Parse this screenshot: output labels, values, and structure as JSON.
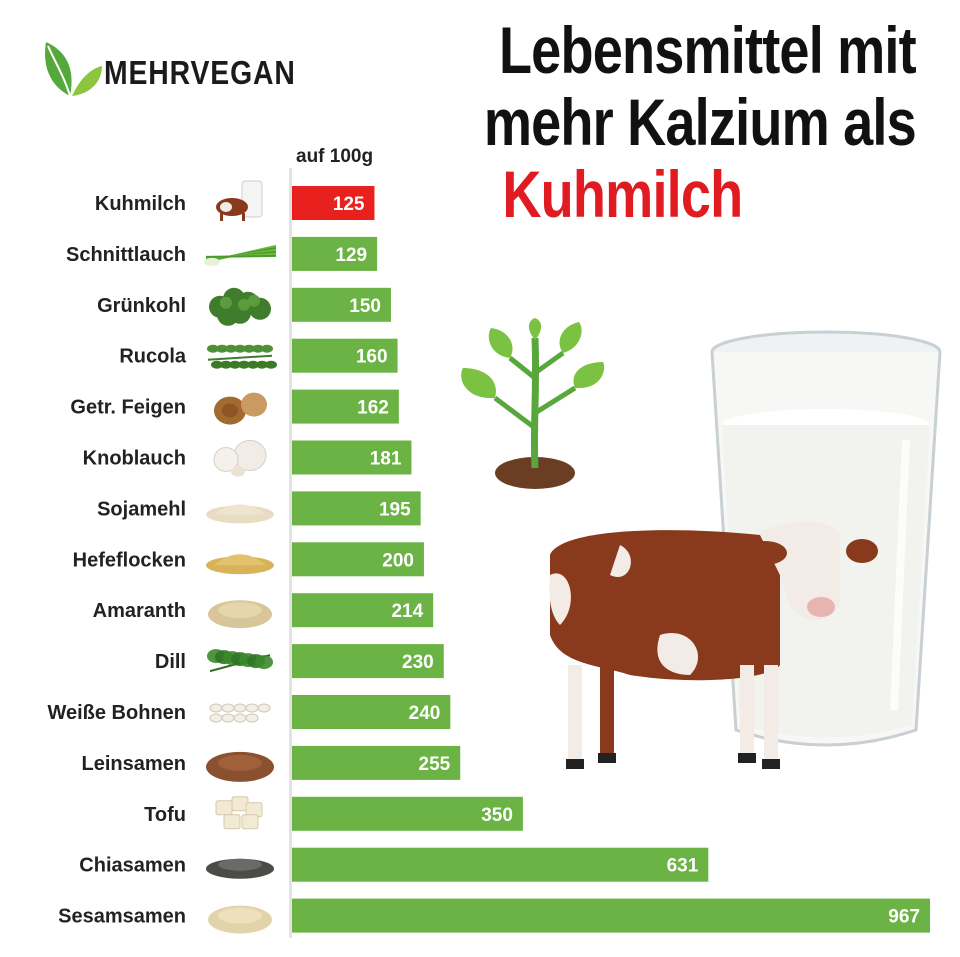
{
  "brand": {
    "name": "MEHRVEGAN",
    "icon": "leaf-icon"
  },
  "title": {
    "line1": "Lebensmittel mit",
    "line2": "mehr Kalzium als",
    "highlight": "Kuhmilch"
  },
  "colors": {
    "bar_green": "#6ab344",
    "bar_red": "#e8201e",
    "title_red": "#e11b22",
    "leaf_green": "#55a83c"
  },
  "chart_data": {
    "type": "bar",
    "orientation": "horizontal",
    "unit_label": "auf 100g",
    "categories": [
      "Kuhmilch",
      "Schnittlauch",
      "Grünkohl",
      "Rucola",
      "Getr. Feigen",
      "Knoblauch",
      "Sojamehl",
      "Hefeflocken",
      "Amaranth",
      "Dill",
      "Weiße Bohnen",
      "Leinsamen",
      "Tofu",
      "Chiasamen",
      "Sesamsamen"
    ],
    "values": [
      125,
      129,
      150,
      160,
      162,
      181,
      195,
      200,
      214,
      230,
      240,
      255,
      350,
      631,
      967
    ],
    "highlight_category": "Kuhmilch",
    "data_labels": true,
    "grid": false,
    "xlim": [
      0,
      967
    ]
  },
  "item_icons": [
    "milk-cow-icon",
    "chives-icon",
    "kale-icon",
    "arugula-icon",
    "dried-figs-icon",
    "garlic-icon",
    "soy-flour-icon",
    "yeast-flakes-icon",
    "amaranth-icon",
    "dill-icon",
    "white-beans-icon",
    "flaxseed-icon",
    "tofu-icon",
    "chia-seeds-icon",
    "sesame-seeds-icon"
  ],
  "illustrations": [
    "sprout-icon",
    "milk-glass-icon",
    "cow-icon"
  ]
}
